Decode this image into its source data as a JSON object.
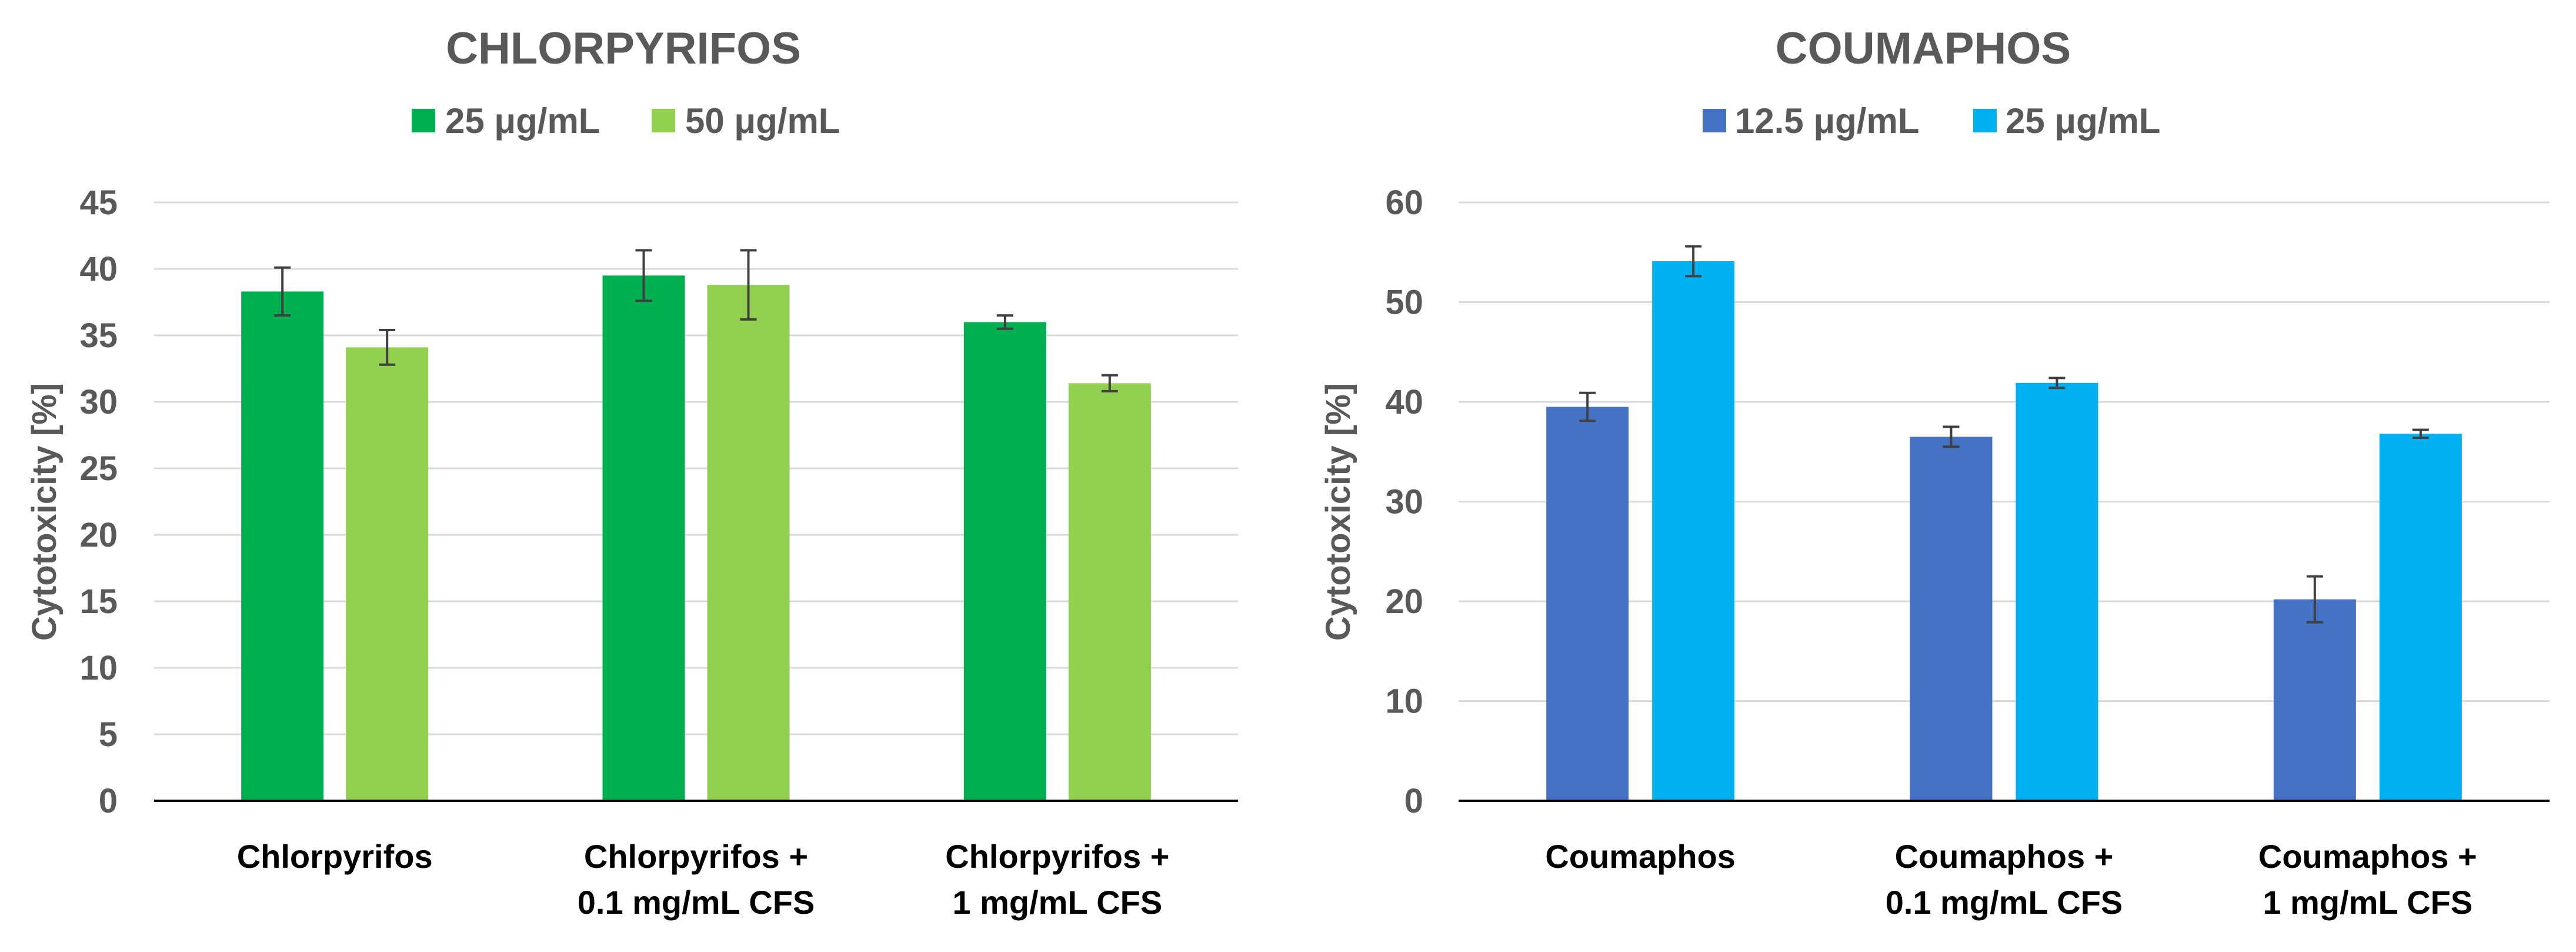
{
  "chart_data": [
    {
      "type": "bar",
      "title": "CHLORPYRIFOS",
      "ylabel": "Cytotoxicity [%]",
      "xlabel": "",
      "ylim": [
        0,
        45
      ],
      "yticks": [
        0,
        5,
        10,
        15,
        20,
        25,
        30,
        35,
        40,
        45
      ],
      "grid": true,
      "legend_position": "top-center",
      "categories": [
        [
          "Chlorpyrifos"
        ],
        [
          "Chlorpyrifos +",
          "0.1 mg/mL CFS"
        ],
        [
          "Chlorpyrifos +",
          "1 mg/mL CFS"
        ]
      ],
      "series": [
        {
          "name": "25 μg/mL",
          "color": "#00b050",
          "values": [
            38.3,
            39.5,
            36.0
          ],
          "errors": [
            1.8,
            1.9,
            0.5
          ]
        },
        {
          "name": "50 μg/mL",
          "color": "#92d050",
          "values": [
            34.1,
            38.8,
            31.4
          ],
          "errors": [
            1.3,
            2.6,
            0.6
          ]
        }
      ]
    },
    {
      "type": "bar",
      "title": "COUMAPHOS",
      "ylabel": "Cytotoxicity [%]",
      "xlabel": "",
      "ylim": [
        0,
        60
      ],
      "yticks": [
        0,
        10,
        20,
        30,
        40,
        50,
        60
      ],
      "grid": true,
      "legend_position": "top-center",
      "categories": [
        [
          "Coumaphos"
        ],
        [
          "Coumaphos +",
          "0.1 mg/mL CFS"
        ],
        [
          "Coumaphos +",
          "1 mg/mL CFS"
        ]
      ],
      "series": [
        {
          "name": "12.5 μg/mL",
          "color": "#4472c4",
          "values": [
            39.5,
            36.5,
            20.2
          ],
          "errors": [
            1.4,
            1.0,
            2.3
          ]
        },
        {
          "name": "25 μg/mL",
          "color": "#00b0f0",
          "values": [
            54.1,
            41.9,
            36.8
          ],
          "errors": [
            1.5,
            0.5,
            0.4
          ]
        }
      ]
    }
  ]
}
